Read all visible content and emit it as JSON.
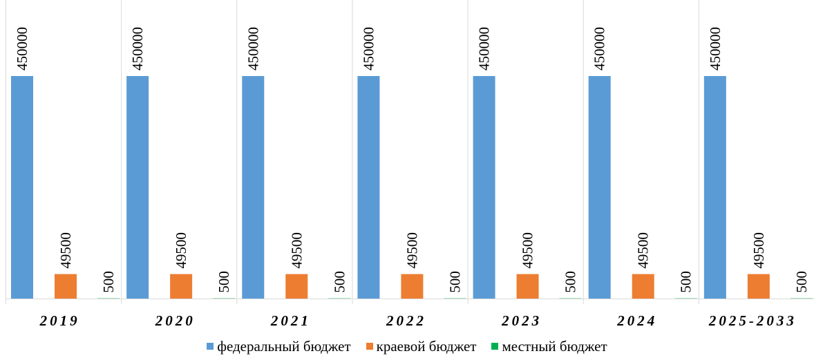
{
  "chart_data": {
    "type": "bar",
    "categories": [
      "2019",
      "2020",
      "2021",
      "2022",
      "2023",
      "2024",
      "2025-2033"
    ],
    "series": [
      {
        "name": "федеральный бюджет",
        "color": "#5B9BD5",
        "values": [
          450000,
          450000,
          450000,
          450000,
          450000,
          450000,
          450000
        ]
      },
      {
        "name": "краевой бюджет",
        "color": "#ED7D31",
        "values": [
          49500,
          49500,
          49500,
          49500,
          49500,
          49500,
          49500
        ]
      },
      {
        "name": "местный бюджет",
        "color": "#00B050",
        "values": [
          500,
          500,
          500,
          500,
          500,
          500,
          500
        ]
      }
    ],
    "ylim": [
      0,
      450000
    ],
    "grid": false,
    "legend": "bottom"
  }
}
